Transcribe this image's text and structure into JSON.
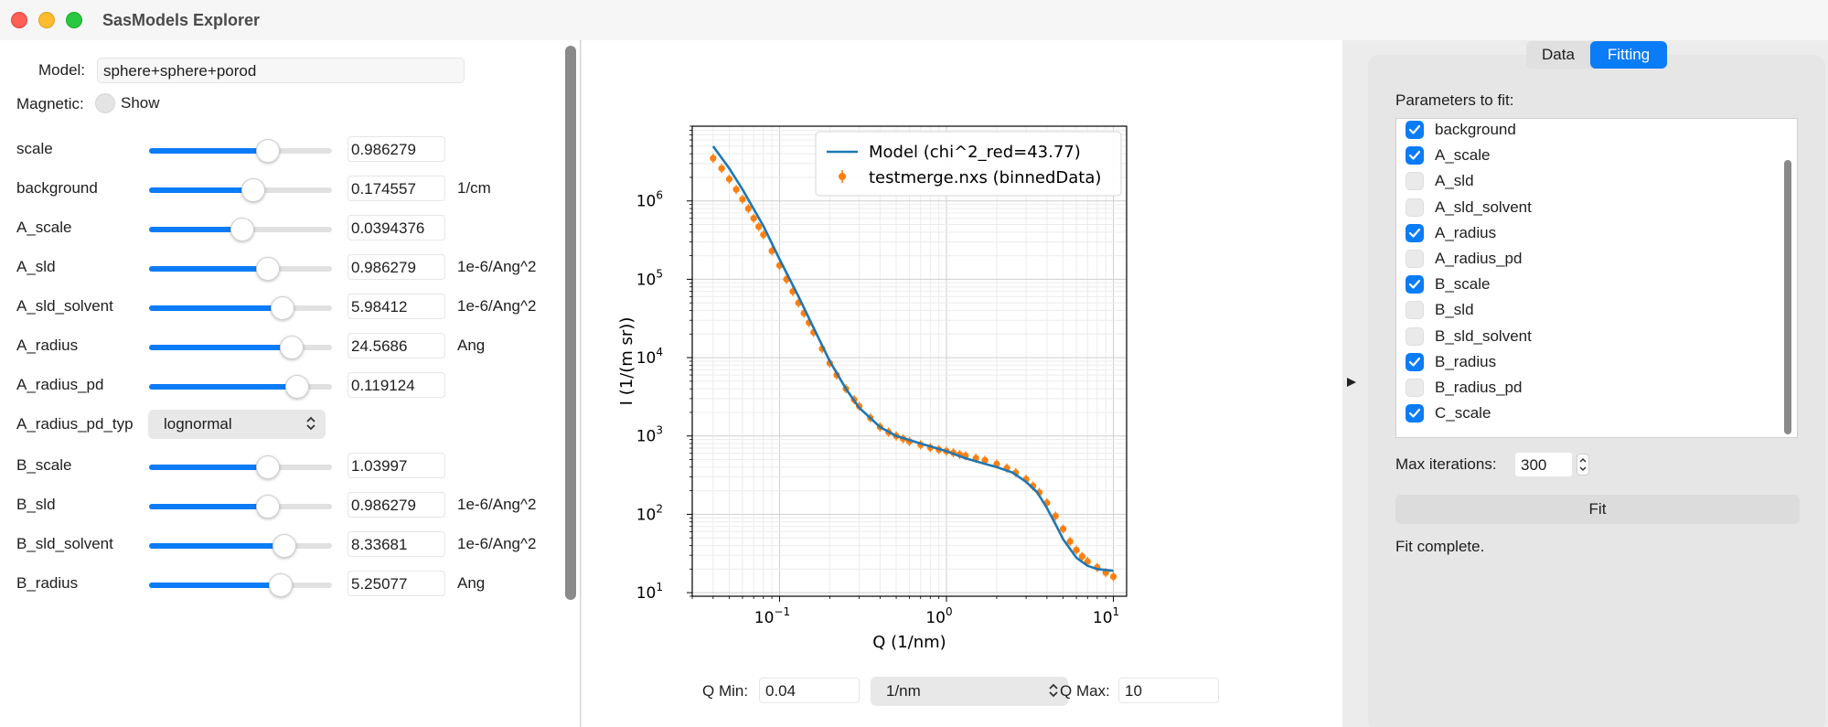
{
  "window": {
    "title": "SasModels Explorer"
  },
  "left": {
    "model_label": "Model:",
    "model_value": "sphere+sphere+porod",
    "magnetic_label": "Magnetic:",
    "show_label": "Show",
    "params": [
      {
        "name": "scale",
        "value": "0.986279",
        "unit": "",
        "slider": 0.65
      },
      {
        "name": "background",
        "value": "0.174557",
        "unit": "1/cm",
        "slider": 0.57
      },
      {
        "name": "A_scale",
        "value": "0.0394376",
        "unit": "",
        "slider": 0.51
      },
      {
        "name": "A_sld",
        "value": "0.986279",
        "unit": "1e-6/Ang^2",
        "slider": 0.65
      },
      {
        "name": "A_sld_solvent",
        "value": "5.98412",
        "unit": "1e-6/Ang^2",
        "slider": 0.73
      },
      {
        "name": "A_radius",
        "value": "24.5686",
        "unit": "Ang",
        "slider": 0.78
      },
      {
        "name": "A_radius_pd",
        "value": "0.119124",
        "unit": "",
        "slider": 0.81
      },
      {
        "name": "A_radius_pd_typ",
        "select": "lognormal"
      },
      {
        "name": "B_scale",
        "value": "1.03997",
        "unit": "",
        "slider": 0.65
      },
      {
        "name": "B_sld",
        "value": "0.986279",
        "unit": "1e-6/Ang^2",
        "slider": 0.65
      },
      {
        "name": "B_sld_solvent",
        "value": "8.33681",
        "unit": "1e-6/Ang^2",
        "slider": 0.74
      },
      {
        "name": "B_radius",
        "value": "5.25077",
        "unit": "Ang",
        "slider": 0.72
      }
    ]
  },
  "plot": {
    "x_label": "Q (1/nm)",
    "y_label": "I (1/(m sr))",
    "x_ticks": [
      {
        "value": 0.1,
        "base": "10",
        "exp": "−1"
      },
      {
        "value": 1,
        "base": "10",
        "exp": "0"
      },
      {
        "value": 10,
        "base": "10",
        "exp": "1"
      }
    ],
    "y_ticks": [
      {
        "value": 10,
        "base": "10",
        "exp": "1"
      },
      {
        "value": 100,
        "base": "10",
        "exp": "2"
      },
      {
        "value": 1000,
        "base": "10",
        "exp": "3"
      },
      {
        "value": 10000,
        "base": "10",
        "exp": "4"
      },
      {
        "value": 100000,
        "base": "10",
        "exp": "5"
      },
      {
        "value": 1000000,
        "base": "10",
        "exp": "6"
      }
    ],
    "legend": {
      "model": "Model (chi^2_red=43.77)",
      "data": "testmerge.nxs (binnedData)"
    },
    "colors": {
      "model": "#1f77b4",
      "data": "#ff7f0e"
    }
  },
  "chart_data": {
    "type": "line",
    "xscale": "log",
    "yscale": "log",
    "xlim": [
      0.03,
      12
    ],
    "ylim": [
      9,
      9000000
    ],
    "grid": true,
    "legend_position": "top-right",
    "xlabel": "Q (1/nm)",
    "ylabel": "I (1/(m sr))",
    "series": [
      {
        "name": "Model (chi^2_red=43.77)",
        "style": "line",
        "x": [
          0.04,
          0.05,
          0.06,
          0.08,
          0.1,
          0.13,
          0.16,
          0.2,
          0.25,
          0.3,
          0.4,
          0.5,
          0.7,
          1.0,
          1.3,
          1.7,
          2.0,
          2.5,
          3.0,
          3.5,
          4.0,
          4.5,
          5.0,
          6.0,
          7.0,
          8.0,
          10.0
        ],
        "y": [
          5000000,
          2600000,
          1400000,
          480000,
          180000,
          60000,
          24000,
          9000,
          4000,
          2300,
          1300,
          1000,
          800,
          640,
          520,
          440,
          400,
          340,
          260,
          190,
          120,
          75,
          48,
          28,
          22,
          20,
          19
        ]
      },
      {
        "name": "testmerge.nxs (binnedData)",
        "style": "points",
        "x": [
          0.04,
          0.045,
          0.05,
          0.055,
          0.06,
          0.065,
          0.07,
          0.075,
          0.08,
          0.09,
          0.1,
          0.11,
          0.12,
          0.13,
          0.14,
          0.15,
          0.16,
          0.18,
          0.2,
          0.22,
          0.25,
          0.28,
          0.3,
          0.35,
          0.4,
          0.45,
          0.5,
          0.55,
          0.6,
          0.7,
          0.8,
          0.9,
          1.0,
          1.1,
          1.2,
          1.3,
          1.5,
          1.7,
          2.0,
          2.3,
          2.6,
          3.0,
          3.3,
          3.6,
          4.0,
          4.5,
          5.0,
          5.5,
          6.0,
          6.5,
          7.0,
          8.0,
          9.0,
          10.0
        ],
        "y": [
          3500000,
          2600000,
          1900000,
          1400000,
          1050000,
          800000,
          600000,
          470000,
          370000,
          230000,
          150000,
          100000,
          70000,
          50000,
          37000,
          28000,
          21000,
          13000,
          8500,
          6000,
          4000,
          2900,
          2400,
          1700,
          1300,
          1120,
          1000,
          920,
          850,
          770,
          710,
          670,
          640,
          610,
          580,
          560,
          520,
          490,
          440,
          390,
          340,
          280,
          230,
          190,
          140,
          95,
          65,
          45,
          35,
          29,
          25,
          21,
          18,
          16
        ]
      }
    ]
  },
  "qrange": {
    "qmin_label": "Q Min:",
    "qmin_value": "0.04",
    "unit_select": "1/nm",
    "qmax_label": "Q Max:",
    "qmax_value": "10"
  },
  "right": {
    "tabs": [
      "Data",
      "Fitting"
    ],
    "params_label": "Parameters to fit:",
    "fit_params": [
      {
        "name": "background",
        "checked": true
      },
      {
        "name": "A_scale",
        "checked": true
      },
      {
        "name": "A_sld",
        "checked": false
      },
      {
        "name": "A_sld_solvent",
        "checked": false
      },
      {
        "name": "A_radius",
        "checked": true
      },
      {
        "name": "A_radius_pd",
        "checked": false
      },
      {
        "name": "B_scale",
        "checked": true
      },
      {
        "name": "B_sld",
        "checked": false
      },
      {
        "name": "B_sld_solvent",
        "checked": false
      },
      {
        "name": "B_radius",
        "checked": true
      },
      {
        "name": "B_radius_pd",
        "checked": false
      },
      {
        "name": "C_scale",
        "checked": true
      }
    ],
    "max_iter_label": "Max iterations:",
    "max_iter_value": "300",
    "fit_button": "Fit",
    "status": "Fit complete."
  }
}
